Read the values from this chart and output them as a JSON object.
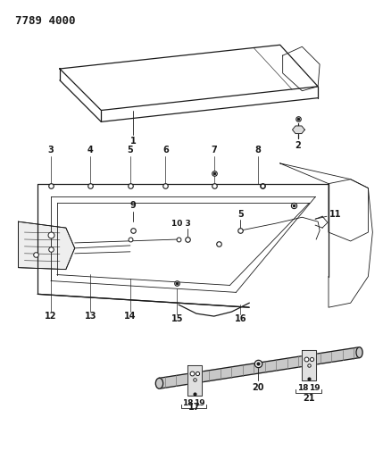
{
  "title": "7789 4000",
  "bg_color": "#ffffff",
  "line_color": "#1a1a1a",
  "fig_width": 4.29,
  "fig_height": 5.33,
  "dpi": 100
}
